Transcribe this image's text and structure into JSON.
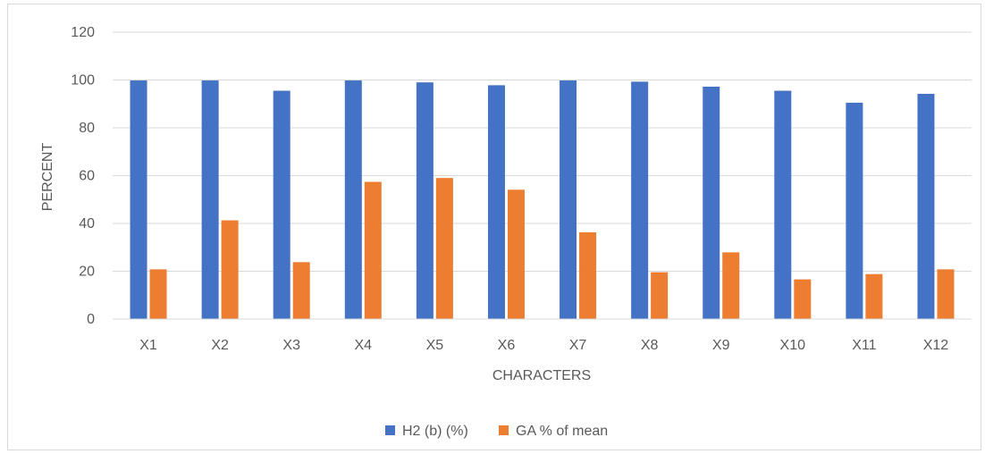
{
  "chart_data": {
    "type": "bar",
    "title": "",
    "xlabel": "CHARACTERS",
    "ylabel": "PERCENT",
    "categories": [
      "X1",
      "X2",
      "X3",
      "X4",
      "X5",
      "X6",
      "X7",
      "X8",
      "X9",
      "X10",
      "X11",
      "X12"
    ],
    "series": [
      {
        "name": "H2 (b) (%)",
        "color": "#4472c4",
        "values": [
          99.8,
          99.8,
          95.5,
          99.8,
          99.0,
          97.8,
          99.8,
          99.3,
          97.2,
          95.5,
          90.5,
          94.2
        ]
      },
      {
        "name": "GA % of mean",
        "color": "#ed7d31",
        "values": [
          20.8,
          41.3,
          23.8,
          57.4,
          59.0,
          54.1,
          36.3,
          19.6,
          27.9,
          16.6,
          18.8,
          20.8
        ]
      }
    ],
    "ylim": [
      0,
      120
    ],
    "yticks": [
      0,
      20,
      40,
      60,
      80,
      100,
      120
    ],
    "grid": true,
    "legend_position": "bottom"
  }
}
